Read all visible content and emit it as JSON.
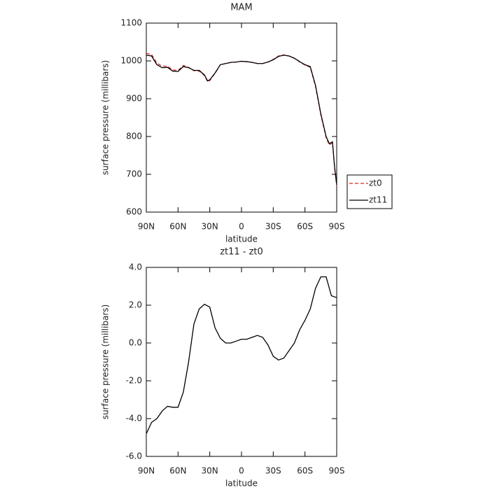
{
  "chart_data": [
    {
      "type": "line",
      "title": "MAM",
      "xlabel": "latitude",
      "ylabel": "surface pressure (millibars)",
      "x": [
        90,
        85,
        80,
        75,
        70,
        65,
        60,
        55,
        50,
        45,
        40,
        35,
        32,
        30,
        25,
        20,
        15,
        10,
        5,
        0,
        -5,
        -10,
        -15,
        -20,
        -25,
        -30,
        -35,
        -40,
        -45,
        -50,
        -55,
        -60,
        -65,
        -70,
        -75,
        -80,
        -83,
        -86,
        -88,
        -90
      ],
      "series": [
        {
          "name": "zt0",
          "color": "#d62728",
          "linestyle": "dashed",
          "values": [
            1020,
            1017,
            994,
            986,
            986,
            976,
            975,
            988,
            983,
            974,
            973,
            961,
            945,
            948,
            967,
            990,
            993,
            996,
            997,
            999,
            998,
            996,
            993,
            993,
            997,
            1004,
            1013,
            1016,
            1013,
            1007,
            997,
            989,
            983,
            932,
            857,
            797,
            778,
            783,
            717,
            670
          ]
        },
        {
          "name": "zt11",
          "color": "#000000",
          "linestyle": "solid",
          "values": [
            1015,
            1013,
            990,
            982,
            983,
            973,
            972,
            985,
            982,
            975,
            975,
            963,
            947,
            950,
            968,
            990,
            993,
            996,
            997,
            999,
            998,
            996,
            993,
            993,
            997,
            1003,
            1012,
            1015,
            1013,
            1007,
            998,
            990,
            985,
            935,
            860,
            800,
            781,
            786,
            720,
            672
          ]
        }
      ],
      "xlim": [
        90,
        -90
      ],
      "xticks": [
        {
          "value": 90,
          "label": "90N"
        },
        {
          "value": 60,
          "label": "60N"
        },
        {
          "value": 30,
          "label": "30N"
        },
        0,
        {
          "value": -30,
          "label": "30S"
        },
        {
          "value": -60,
          "label": "60S"
        },
        {
          "value": -90,
          "label": "90S"
        }
      ],
      "ylim": [
        600,
        1100
      ],
      "yticks": [
        600,
        700,
        800,
        900,
        1000,
        1100
      ],
      "legend": "outside-right"
    },
    {
      "type": "line",
      "title": "zt11 - zt0",
      "xlabel": "latitude",
      "ylabel": "surface pressure (millibars)",
      "x": [
        90,
        85,
        80,
        75,
        70,
        65,
        60,
        55,
        50,
        45,
        40,
        35,
        30,
        25,
        20,
        15,
        10,
        5,
        0,
        -5,
        -10,
        -15,
        -20,
        -25,
        -30,
        -35,
        -40,
        -45,
        -50,
        -55,
        -60,
        -65,
        -70,
        -75,
        -80,
        -85,
        -90
      ],
      "values": [
        -4.8,
        -4.2,
        -4.0,
        -3.6,
        -3.35,
        -3.4,
        -3.4,
        -2.6,
        -1.0,
        1.0,
        1.8,
        2.05,
        1.9,
        0.8,
        0.25,
        0.0,
        0.0,
        0.1,
        0.2,
        0.2,
        0.3,
        0.4,
        0.3,
        -0.1,
        -0.7,
        -0.9,
        -0.8,
        -0.4,
        0.0,
        0.7,
        1.2,
        1.8,
        2.9,
        3.5,
        3.5,
        2.5,
        2.4
      ],
      "color": "#000000",
      "xlim": [
        90,
        -90
      ],
      "xticks": [
        {
          "value": 90,
          "label": "90N"
        },
        {
          "value": 60,
          "label": "60N"
        },
        {
          "value": 30,
          "label": "30N"
        },
        0,
        {
          "value": -30,
          "label": "30S"
        },
        {
          "value": -60,
          "label": "60S"
        },
        {
          "value": -90,
          "label": "90S"
        }
      ],
      "ylim": [
        -6,
        4
      ],
      "yticks": [
        {
          "value": -6,
          "label": "-6.0"
        },
        {
          "value": -4,
          "label": "-4.0"
        },
        {
          "value": -2,
          "label": "-2.0"
        },
        {
          "value": 0,
          "label": "0.0"
        },
        {
          "value": 2,
          "label": "2.0"
        },
        {
          "value": 4,
          "label": "4.0"
        }
      ]
    }
  ]
}
